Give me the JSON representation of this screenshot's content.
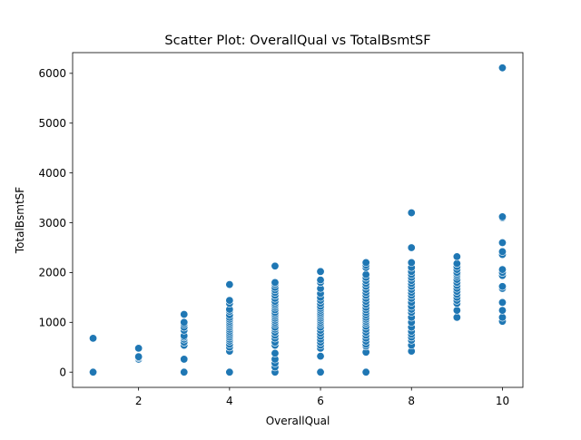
{
  "chart_data": {
    "type": "scatter",
    "title": "Scatter Plot: OverallQual vs TotalBsmtSF",
    "xlabel": "OverallQual",
    "ylabel": "TotalBsmtSF",
    "xlim": [
      0.55,
      10.45
    ],
    "ylim": [
      -306,
      6416
    ],
    "xticks": [
      2,
      4,
      6,
      8,
      10
    ],
    "yticks": [
      0,
      1000,
      2000,
      3000,
      4000,
      5000,
      6000
    ],
    "xtick_labels": [
      "2",
      "4",
      "6",
      "8",
      "10"
    ],
    "ytick_labels": [
      "0",
      "1000",
      "2000",
      "3000",
      "4000",
      "5000",
      "6000"
    ],
    "grid": false,
    "marker_color": "#1f77b4",
    "series": [
      {
        "points": [
          [
            1,
            0
          ],
          [
            1,
            680
          ],
          [
            2,
            260
          ],
          [
            2,
            290
          ],
          [
            2,
            310
          ],
          [
            2,
            480
          ],
          [
            3,
            0
          ],
          [
            3,
            260
          ],
          [
            3,
            540
          ],
          [
            3,
            600
          ],
          [
            3,
            660
          ],
          [
            3,
            700
          ],
          [
            3,
            730
          ],
          [
            3,
            840
          ],
          [
            3,
            900
          ],
          [
            3,
            960
          ],
          [
            3,
            1000
          ],
          [
            3,
            1160
          ],
          [
            4,
            0
          ],
          [
            4,
            420
          ],
          [
            4,
            500
          ],
          [
            4,
            560
          ],
          [
            4,
            620
          ],
          [
            4,
            660
          ],
          [
            4,
            700
          ],
          [
            4,
            740
          ],
          [
            4,
            780
          ],
          [
            4,
            820
          ],
          [
            4,
            860
          ],
          [
            4,
            900
          ],
          [
            4,
            940
          ],
          [
            4,
            980
          ],
          [
            4,
            1020
          ],
          [
            4,
            1060
          ],
          [
            4,
            1100
          ],
          [
            4,
            1150
          ],
          [
            4,
            1220
          ],
          [
            4,
            1260
          ],
          [
            4,
            1380
          ],
          [
            4,
            1440
          ],
          [
            4,
            1760
          ],
          [
            5,
            0
          ],
          [
            5,
            100
          ],
          [
            5,
            180
          ],
          [
            5,
            260
          ],
          [
            5,
            380
          ],
          [
            5,
            540
          ],
          [
            5,
            600
          ],
          [
            5,
            680
          ],
          [
            5,
            740
          ],
          [
            5,
            800
          ],
          [
            5,
            860
          ],
          [
            5,
            900
          ],
          [
            5,
            960
          ],
          [
            5,
            1000
          ],
          [
            5,
            1040
          ],
          [
            5,
            1080
          ],
          [
            5,
            1120
          ],
          [
            5,
            1160
          ],
          [
            5,
            1200
          ],
          [
            5,
            1250
          ],
          [
            5,
            1300
          ],
          [
            5,
            1340
          ],
          [
            5,
            1380
          ],
          [
            5,
            1420
          ],
          [
            5,
            1480
          ],
          [
            5,
            1540
          ],
          [
            5,
            1600
          ],
          [
            5,
            1650
          ],
          [
            5,
            1700
          ],
          [
            5,
            1760
          ],
          [
            5,
            1800
          ],
          [
            5,
            2130
          ],
          [
            6,
            0
          ],
          [
            6,
            320
          ],
          [
            6,
            480
          ],
          [
            6,
            540
          ],
          [
            6,
            600
          ],
          [
            6,
            660
          ],
          [
            6,
            720
          ],
          [
            6,
            780
          ],
          [
            6,
            840
          ],
          [
            6,
            900
          ],
          [
            6,
            960
          ],
          [
            6,
            1000
          ],
          [
            6,
            1040
          ],
          [
            6,
            1080
          ],
          [
            6,
            1120
          ],
          [
            6,
            1160
          ],
          [
            6,
            1200
          ],
          [
            6,
            1240
          ],
          [
            6,
            1280
          ],
          [
            6,
            1320
          ],
          [
            6,
            1380
          ],
          [
            6,
            1440
          ],
          [
            6,
            1500
          ],
          [
            6,
            1580
          ],
          [
            6,
            1680
          ],
          [
            6,
            1800
          ],
          [
            6,
            1850
          ],
          [
            6,
            2020
          ],
          [
            7,
            0
          ],
          [
            7,
            400
          ],
          [
            7,
            520
          ],
          [
            7,
            560
          ],
          [
            7,
            620
          ],
          [
            7,
            680
          ],
          [
            7,
            740
          ],
          [
            7,
            800
          ],
          [
            7,
            860
          ],
          [
            7,
            920
          ],
          [
            7,
            980
          ],
          [
            7,
            1020
          ],
          [
            7,
            1060
          ],
          [
            7,
            1100
          ],
          [
            7,
            1150
          ],
          [
            7,
            1200
          ],
          [
            7,
            1250
          ],
          [
            7,
            1300
          ],
          [
            7,
            1360
          ],
          [
            7,
            1420
          ],
          [
            7,
            1480
          ],
          [
            7,
            1540
          ],
          [
            7,
            1600
          ],
          [
            7,
            1660
          ],
          [
            7,
            1720
          ],
          [
            7,
            1780
          ],
          [
            7,
            1840
          ],
          [
            7,
            1900
          ],
          [
            7,
            1960
          ],
          [
            7,
            2100
          ],
          [
            7,
            2150
          ],
          [
            7,
            2200
          ],
          [
            8,
            420
          ],
          [
            8,
            540
          ],
          [
            8,
            640
          ],
          [
            8,
            700
          ],
          [
            8,
            760
          ],
          [
            8,
            820
          ],
          [
            8,
            900
          ],
          [
            8,
            1000
          ],
          [
            8,
            1100
          ],
          [
            8,
            1200
          ],
          [
            8,
            1260
          ],
          [
            8,
            1320
          ],
          [
            8,
            1400
          ],
          [
            8,
            1480
          ],
          [
            8,
            1540
          ],
          [
            8,
            1600
          ],
          [
            8,
            1660
          ],
          [
            8,
            1720
          ],
          [
            8,
            1780
          ],
          [
            8,
            1840
          ],
          [
            8,
            1900
          ],
          [
            8,
            1960
          ],
          [
            8,
            2020
          ],
          [
            8,
            2100
          ],
          [
            8,
            2200
          ],
          [
            8,
            2500
          ],
          [
            8,
            3200
          ],
          [
            9,
            1100
          ],
          [
            9,
            1240
          ],
          [
            9,
            1380
          ],
          [
            9,
            1440
          ],
          [
            9,
            1500
          ],
          [
            9,
            1560
          ],
          [
            9,
            1620
          ],
          [
            9,
            1680
          ],
          [
            9,
            1740
          ],
          [
            9,
            1800
          ],
          [
            9,
            1860
          ],
          [
            9,
            1920
          ],
          [
            9,
            1960
          ],
          [
            9,
            2000
          ],
          [
            9,
            2060
          ],
          [
            9,
            2120
          ],
          [
            9,
            2180
          ],
          [
            9,
            2320
          ],
          [
            10,
            1020
          ],
          [
            10,
            1100
          ],
          [
            10,
            1240
          ],
          [
            10,
            1400
          ],
          [
            10,
            1680
          ],
          [
            10,
            1720
          ],
          [
            10,
            1940
          ],
          [
            10,
            2000
          ],
          [
            10,
            2060
          ],
          [
            10,
            2360
          ],
          [
            10,
            2420
          ],
          [
            10,
            2600
          ],
          [
            10,
            3100
          ],
          [
            10,
            3120
          ],
          [
            10,
            6110
          ]
        ]
      }
    ]
  }
}
